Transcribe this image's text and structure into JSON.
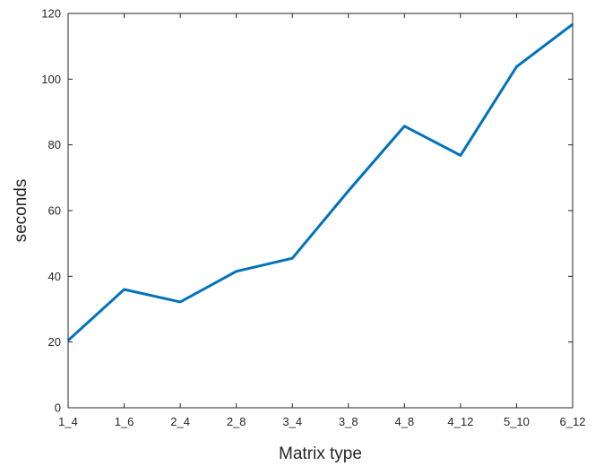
{
  "chart_data": {
    "type": "line",
    "title": "",
    "xlabel": "Matrix type",
    "ylabel": "seconds",
    "categories": [
      "1_4",
      "1_6",
      "2_4",
      "2_8",
      "3_4",
      "3_8",
      "4_8",
      "4_12",
      "5_10",
      "6_12"
    ],
    "series": [
      {
        "values": [
          20.5,
          36,
          32.2,
          41.5,
          45.5,
          66,
          85.7,
          76.8,
          103.8,
          116.7
        ],
        "color": "#0072BD"
      }
    ],
    "ylim": [
      0,
      120
    ],
    "yticks": [
      0,
      20,
      40,
      60,
      80,
      100,
      120
    ],
    "grid": false,
    "box": true,
    "legend": "none"
  }
}
